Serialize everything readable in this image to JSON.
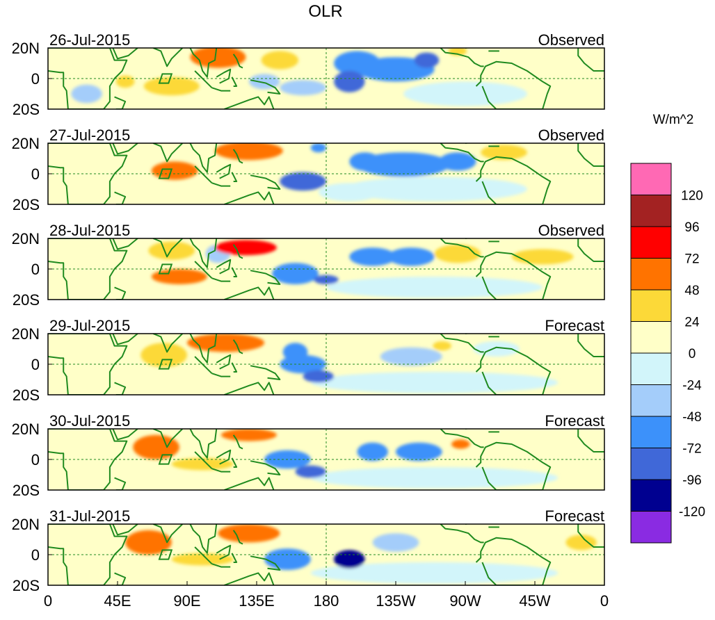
{
  "chart_data": {
    "type": "heatmap",
    "title": "OLR",
    "units": "W/m^2",
    "y_ticks": [
      "20N",
      "0",
      "20S"
    ],
    "x_ticks": [
      "0",
      "45E",
      "90E",
      "135E",
      "180",
      "135W",
      "90W",
      "45W",
      "0"
    ],
    "lat_range": [
      -20,
      20
    ],
    "lon_range": [
      0,
      360
    ],
    "colorbar": {
      "labels": [
        "120",
        "96",
        "72",
        "48",
        "24",
        "0",
        "-24",
        "-48",
        "-72",
        "-96",
        "-120"
      ],
      "colors": [
        "#ff69b4",
        "#a32222",
        "#ff0000",
        "#ff7300",
        "#fcd938",
        "#ffffc8",
        "#d2f5fa",
        "#a4cdfa",
        "#3c91fa",
        "#4068d8",
        "#000090",
        "#8a2be2"
      ]
    },
    "panels": [
      {
        "date": "26-Jul-2015",
        "label": "Observed"
      },
      {
        "date": "27-Jul-2015",
        "label": "Observed"
      },
      {
        "date": "28-Jul-2015",
        "label": "Observed"
      },
      {
        "date": "29-Jul-2015",
        "label": "Forecast"
      },
      {
        "date": "30-Jul-2015",
        "label": "Forecast"
      },
      {
        "date": "31-Jul-2015",
        "label": "Forecast"
      }
    ],
    "anomalies": [
      [
        {
          "lon": 195,
          "lat": -2,
          "rx": 10,
          "ry": 7,
          "v": -90
        },
        {
          "lon": 225,
          "lat": 6,
          "rx": 25,
          "ry": 8,
          "v": -55
        },
        {
          "lon": 245,
          "lat": 12,
          "rx": 8,
          "ry": 5,
          "v": -75
        },
        {
          "lon": 140,
          "lat": -2,
          "rx": 10,
          "ry": 5,
          "v": -40
        },
        {
          "lon": 200,
          "lat": 10,
          "rx": 15,
          "ry": 8,
          "v": -50
        },
        {
          "lon": 165,
          "lat": -6,
          "rx": 15,
          "ry": 5,
          "v": -30
        },
        {
          "lon": 110,
          "lat": 14,
          "rx": 18,
          "ry": 7,
          "v": 55
        },
        {
          "lon": 80,
          "lat": -5,
          "rx": 18,
          "ry": 6,
          "v": 40
        },
        {
          "lon": 50,
          "lat": -2,
          "rx": 6,
          "ry": 4,
          "v": 45
        },
        {
          "lon": 150,
          "lat": 12,
          "rx": 12,
          "ry": 6,
          "v": 35
        },
        {
          "lon": 265,
          "lat": 18,
          "rx": 6,
          "ry": 3,
          "v": 40
        },
        {
          "lon": 270,
          "lat": -10,
          "rx": 40,
          "ry": 8,
          "v": -15
        },
        {
          "lon": 25,
          "lat": 8,
          "rx": 15,
          "ry": 6,
          "v": 20
        },
        {
          "lon": 25,
          "lat": -10,
          "rx": 10,
          "ry": 6,
          "v": -30
        }
      ],
      [
        {
          "lon": 165,
          "lat": -5,
          "rx": 15,
          "ry": 6,
          "v": -95
        },
        {
          "lon": 230,
          "lat": 6,
          "rx": 30,
          "ry": 8,
          "v": -60
        },
        {
          "lon": 205,
          "lat": 8,
          "rx": 10,
          "ry": 6,
          "v": -55
        },
        {
          "lon": 265,
          "lat": 8,
          "rx": 12,
          "ry": 6,
          "v": -60
        },
        {
          "lon": 175,
          "lat": 17,
          "rx": 5,
          "ry": 3,
          "v": -50
        },
        {
          "lon": 130,
          "lat": 15,
          "rx": 22,
          "ry": 6,
          "v": 60
        },
        {
          "lon": 82,
          "lat": 2,
          "rx": 15,
          "ry": 6,
          "v": 50
        },
        {
          "lon": 250,
          "lat": -10,
          "rx": 60,
          "ry": 8,
          "v": -15
        },
        {
          "lon": 30,
          "lat": 10,
          "rx": 20,
          "ry": 6,
          "v": 20
        },
        {
          "lon": 295,
          "lat": 14,
          "rx": 15,
          "ry": 5,
          "v": 30
        },
        {
          "lon": 195,
          "lat": -12,
          "rx": 20,
          "ry": 6,
          "v": -20
        }
      ],
      [
        {
          "lon": 160,
          "lat": -3,
          "rx": 15,
          "ry": 7,
          "v": -70
        },
        {
          "lon": 180,
          "lat": -7,
          "rx": 8,
          "ry": 3,
          "v": -90
        },
        {
          "lon": 210,
          "lat": 8,
          "rx": 15,
          "ry": 6,
          "v": -65
        },
        {
          "lon": 235,
          "lat": 8,
          "rx": 15,
          "ry": 6,
          "v": -60
        },
        {
          "lon": 128,
          "lat": 14,
          "rx": 20,
          "ry": 5,
          "v": 75
        },
        {
          "lon": 85,
          "lat": -5,
          "rx": 18,
          "ry": 5,
          "v": 50
        },
        {
          "lon": 80,
          "lat": 12,
          "rx": 15,
          "ry": 6,
          "v": 40
        },
        {
          "lon": 110,
          "lat": 10,
          "rx": 8,
          "ry": 6,
          "v": -40
        },
        {
          "lon": 265,
          "lat": 10,
          "rx": 15,
          "ry": 6,
          "v": 45
        },
        {
          "lon": 250,
          "lat": -12,
          "rx": 70,
          "ry": 7,
          "v": -15
        },
        {
          "lon": 320,
          "lat": 8,
          "rx": 20,
          "ry": 5,
          "v": 30
        }
      ],
      [
        {
          "lon": 165,
          "lat": 0,
          "rx": 15,
          "ry": 6,
          "v": -70
        },
        {
          "lon": 175,
          "lat": -8,
          "rx": 10,
          "ry": 4,
          "v": -90
        },
        {
          "lon": 160,
          "lat": 8,
          "rx": 8,
          "ry": 6,
          "v": -55
        },
        {
          "lon": 235,
          "lat": 5,
          "rx": 20,
          "ry": 6,
          "v": -45
        },
        {
          "lon": 115,
          "lat": 14,
          "rx": 25,
          "ry": 6,
          "v": 50
        },
        {
          "lon": 75,
          "lat": 6,
          "rx": 15,
          "ry": 8,
          "v": 40
        },
        {
          "lon": 255,
          "lat": 12,
          "rx": 6,
          "ry": 3,
          "v": 35
        },
        {
          "lon": 250,
          "lat": -12,
          "rx": 80,
          "ry": 7,
          "v": -15
        },
        {
          "lon": 35,
          "lat": 0,
          "rx": 20,
          "ry": 10,
          "v": 15
        },
        {
          "lon": 290,
          "lat": 10,
          "rx": 15,
          "ry": 5,
          "v": -20
        }
      ],
      [
        {
          "lon": 155,
          "lat": 0,
          "rx": 15,
          "ry": 6,
          "v": -65
        },
        {
          "lon": 170,
          "lat": -8,
          "rx": 10,
          "ry": 4,
          "v": -85
        },
        {
          "lon": 210,
          "lat": 5,
          "rx": 10,
          "ry": 6,
          "v": -60
        },
        {
          "lon": 240,
          "lat": 5,
          "rx": 15,
          "ry": 6,
          "v": -55
        },
        {
          "lon": 130,
          "lat": 16,
          "rx": 18,
          "ry": 4,
          "v": 60
        },
        {
          "lon": 70,
          "lat": 8,
          "rx": 15,
          "ry": 8,
          "v": 50
        },
        {
          "lon": 100,
          "lat": -3,
          "rx": 20,
          "ry": 4,
          "v": 30
        },
        {
          "lon": 250,
          "lat": -12,
          "rx": 80,
          "ry": 7,
          "v": -15
        },
        {
          "lon": 267,
          "lat": 10,
          "rx": 6,
          "ry": 3,
          "v": 50
        }
      ],
      [
        {
          "lon": 155,
          "lat": -3,
          "rx": 15,
          "ry": 7,
          "v": -65
        },
        {
          "lon": 195,
          "lat": -3,
          "rx": 10,
          "ry": 6,
          "v": -100
        },
        {
          "lon": 225,
          "lat": 8,
          "rx": 15,
          "ry": 6,
          "v": -45
        },
        {
          "lon": 130,
          "lat": 14,
          "rx": 20,
          "ry": 6,
          "v": 60
        },
        {
          "lon": 65,
          "lat": 8,
          "rx": 15,
          "ry": 8,
          "v": 50
        },
        {
          "lon": 100,
          "lat": -3,
          "rx": 20,
          "ry": 4,
          "v": 30
        },
        {
          "lon": 250,
          "lat": -12,
          "rx": 80,
          "ry": 7,
          "v": -15
        },
        {
          "lon": 345,
          "lat": 8,
          "rx": 10,
          "ry": 5,
          "v": 40
        }
      ]
    ]
  }
}
